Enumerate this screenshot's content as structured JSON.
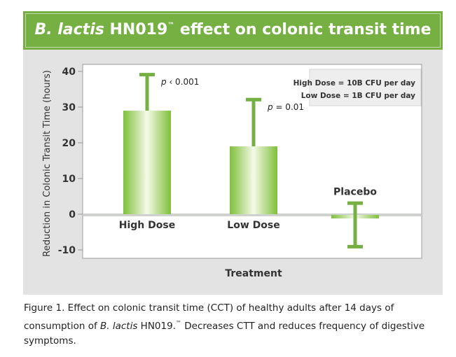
{
  "chart_data": {
    "type": "bar",
    "title_italic": "B. lactis",
    "title_rest": " HN019",
    "title_tm": "™",
    "title_tail": " effect on colonic transit time",
    "categories": [
      "High Dose",
      "Low Dose",
      "Placebo"
    ],
    "values": [
      29,
      19,
      -1
    ],
    "error_high": [
      39,
      32,
      3
    ],
    "error_low": [
      29,
      19,
      -9
    ],
    "p_values": [
      {
        "prefix": "p",
        "text": " ‹ 0.001"
      },
      {
        "prefix": "p",
        "text": " = 0.01"
      },
      null
    ],
    "ylabel": "Reduction in Colonic Transit Time (hours)",
    "xlabel": "Treatment",
    "ylim": [
      -10,
      40
    ],
    "yticks": [
      -10,
      0,
      10,
      20,
      30,
      40
    ],
    "grid": false,
    "legend_lines": [
      "High Dose = 10B CFU per day",
      "Low Dose = 1B CFU per day"
    ],
    "bar_color": "#8dc63f",
    "error_color": "#76b043"
  },
  "caption": {
    "part1": "Figure 1.  Effect on colonic transit time (CCT) of healthy adults after 14 days of consumption of ",
    "italic": "B. lactis",
    "part2": " HN019.",
    "tm": "™",
    "part3": " Decreases CTT and reduces frequency of digestive symptoms."
  }
}
